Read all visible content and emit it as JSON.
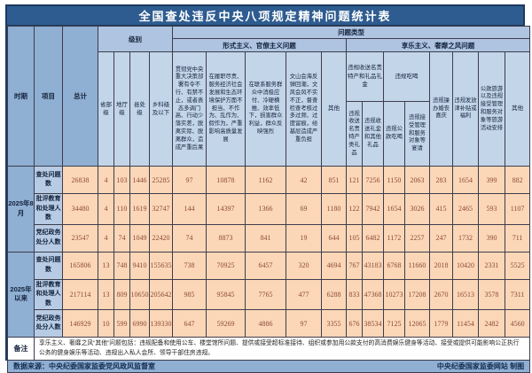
{
  "title": "全国查处违反中央八项规定精神问题统计表",
  "header": {
    "period": "时期",
    "item": "项目",
    "total": "总计",
    "level_group": "级别",
    "levels": [
      "省部级",
      "地厅级",
      "县处级",
      "乡科级及以下"
    ],
    "problem_type_group": "问题类型",
    "formalism_group": "形式主义、官僚主义问题",
    "hedonism_group": "享乐主义、奢靡之风问题",
    "formalism_cols": [
      "贯彻党中央重大决策部署有令不行、有禁不止，或者表态多调门高、行动少落实差，脱离实际、脱离群众，造成严重后果",
      "在履职尽责、服务经济社会发展和生态环境保护方面不担当、不作为、乱作为、假作为，严重影响高质量发展",
      "在联系服务群众中消极应付、冷硬横推、效率低下，损害群众利益，群众反映强烈",
      "文山会海反弹回潮，文风会风不实不正，督查检查考核过多过频、过度留痕，给基层造成严重负担",
      "其他"
    ],
    "gift_group": "违规收送名贵特产和礼品礼金",
    "gift_cols": [
      "违规收送名贵特产类礼品",
      "违规收送礼金和其他礼品"
    ],
    "dining_group": "违规吃喝",
    "dining_cols": [
      "违规公款吃喝",
      "违规接受管理和服务对象等宴请"
    ],
    "hedonism_cols": [
      "违规操办婚丧喜庆",
      "违规发放津补贴或福利",
      "公款旅游以及违规接受管理和服务对象等旅游活动安排",
      "其他"
    ]
  },
  "chart_data": {
    "type": "table",
    "value_columns": [
      "省部级",
      "地厅级",
      "县处级",
      "乡科级及以下",
      "贯彻党中央重大决策部署问题",
      "履职尽责不担当不作为问题",
      "联系服务群众消极应付问题",
      "文山会海督查检查过多问题",
      "形式主义其他",
      "违规收送名贵特产类礼品",
      "违规收送礼金和其他礼品",
      "违规公款吃喝",
      "违规接受管理和服务对象等宴请",
      "违规操办婚丧喜庆",
      "违规发放津补贴或福利",
      "公款旅游及违规旅游活动安排",
      "享乐主义其他"
    ],
    "periods": [
      {
        "label": "2025年8月"
      },
      {
        "label": "2025年以来"
      }
    ],
    "rows": [
      {
        "item": "查处问题数",
        "total": "26838",
        "values": [
          "4",
          "103",
          "1446",
          "25285",
          "97",
          "10878",
          "1162",
          "42",
          "851",
          "121",
          "7256",
          "1150",
          "2063",
          "283",
          "1654",
          "399",
          "882"
        ]
      },
      {
        "item": "批评教育和处理人数",
        "total": "34480",
        "values": [
          "4",
          "110",
          "1619",
          "32747",
          "144",
          "14397",
          "1366",
          "69",
          "1180",
          "122",
          "7942",
          "1654",
          "3026",
          "415",
          "2465",
          "593",
          "1107"
        ]
      },
      {
        "item": "党纪政务处分人数",
        "total": "23547",
        "values": [
          "4",
          "74",
          "1049",
          "22420",
          "74",
          "8873",
          "841",
          "19",
          "644",
          "105",
          "6482",
          "1172",
          "2257",
          "247",
          "1732",
          "390",
          "711"
        ]
      },
      {
        "item": "查处问题数",
        "total": "165806",
        "values": [
          "13",
          "748",
          "9410",
          "155635",
          "738",
          "70925",
          "6457",
          "320",
          "4694",
          "767",
          "43183",
          "6768",
          "11660",
          "2018",
          "10420",
          "2331",
          "5525"
        ]
      },
      {
        "item": "批评教育和处理人数",
        "total": "217114",
        "values": [
          "13",
          "809",
          "10650",
          "205642",
          "985",
          "95845",
          "7765",
          "477",
          "6288",
          "833",
          "47368",
          "10273",
          "17208",
          "2670",
          "16513",
          "3578",
          "7311"
        ]
      },
      {
        "item": "党纪政务处分人数",
        "total": "146929",
        "values": [
          "10",
          "599",
          "6990",
          "139330",
          "647",
          "59269",
          "4886",
          "97",
          "3355",
          "676",
          "38534",
          "7125",
          "12065",
          "1779",
          "11454",
          "2482",
          "4560"
        ]
      }
    ]
  },
  "note": {
    "label": "备注",
    "text": "享乐主义、奢靡之风“其他”问题包括：违规配备和使用公车、楼堂馆所问题、提供或接受超标准接待、组织或参加用公款支付的高消费娱乐健身等活动、接受或提供可能影响公正执行公务的健身娱乐等活动、违规出入私人会所、领导干部住房违规。"
  },
  "footer": {
    "left": "数据来源：中央纪委国家监委党风政风监督室",
    "right": "中央纪委国家监委网站 制图"
  },
  "colors": {
    "title_bg": "#2e5c90",
    "header_medium": "#8fafd3",
    "header_band": "#aec4e0",
    "header_leaf": "#c3d5e9",
    "data_bg": "#fcd7b7",
    "number_text": "#8a4a3c",
    "border": "#3d3d4d"
  }
}
